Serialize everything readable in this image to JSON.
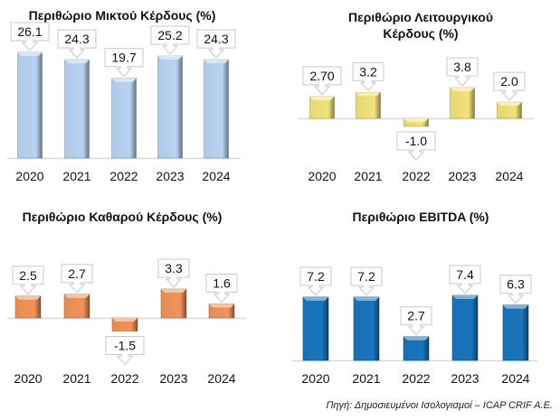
{
  "chart_data": [
    {
      "type": "bar",
      "title": "Περιθώριο Μικτού Κέρδους (%)",
      "categories": [
        "2020",
        "2021",
        "2022",
        "2023",
        "2024"
      ],
      "values": [
        26.1,
        24.3,
        19.7,
        25.2,
        24.3
      ],
      "value_labels": [
        "26.1",
        "24.3",
        "19.7",
        "25.2",
        "24.3"
      ],
      "xlabel": "",
      "ylabel": "",
      "grid": false,
      "color": "#b8d3f2"
    },
    {
      "type": "bar",
      "title": "Περιθώριο Λειτουργικού Κέρδους (%)",
      "categories": [
        "2020",
        "2021",
        "2022",
        "2023",
        "2024"
      ],
      "values": [
        2.7,
        3.2,
        -1.0,
        3.8,
        2.0
      ],
      "value_labels": [
        "2.70",
        "3.2",
        "-1.0",
        "3.8",
        "2.0"
      ],
      "xlabel": "",
      "ylabel": "",
      "grid": false,
      "color": "#f2e27a"
    },
    {
      "type": "bar",
      "title": "Περιθώριο Καθαρού Κέρδους (%)",
      "categories": [
        "2020",
        "2021",
        "2022",
        "2023",
        "2024"
      ],
      "values": [
        2.5,
        2.7,
        -1.5,
        3.3,
        1.6
      ],
      "value_labels": [
        "2.5",
        "2.7",
        "-1.5",
        "3.3",
        "1.6"
      ],
      "xlabel": "",
      "ylabel": "",
      "grid": false,
      "color": "#f0935a"
    },
    {
      "type": "bar",
      "title": "Περιθώριο EBITDA (%)",
      "categories": [
        "2020",
        "2021",
        "2022",
        "2023",
        "2024"
      ],
      "values": [
        7.2,
        7.2,
        2.7,
        7.4,
        6.3
      ],
      "value_labels": [
        "7.2",
        "7.2",
        "2.7",
        "7.4",
        "6.3"
      ],
      "xlabel": "",
      "ylabel": "",
      "grid": false,
      "color": "#1a75bc"
    }
  ],
  "source": "Πηγή: Δημοσιευμένοι Ισολογισμοί – ICAP CRIF A.E."
}
